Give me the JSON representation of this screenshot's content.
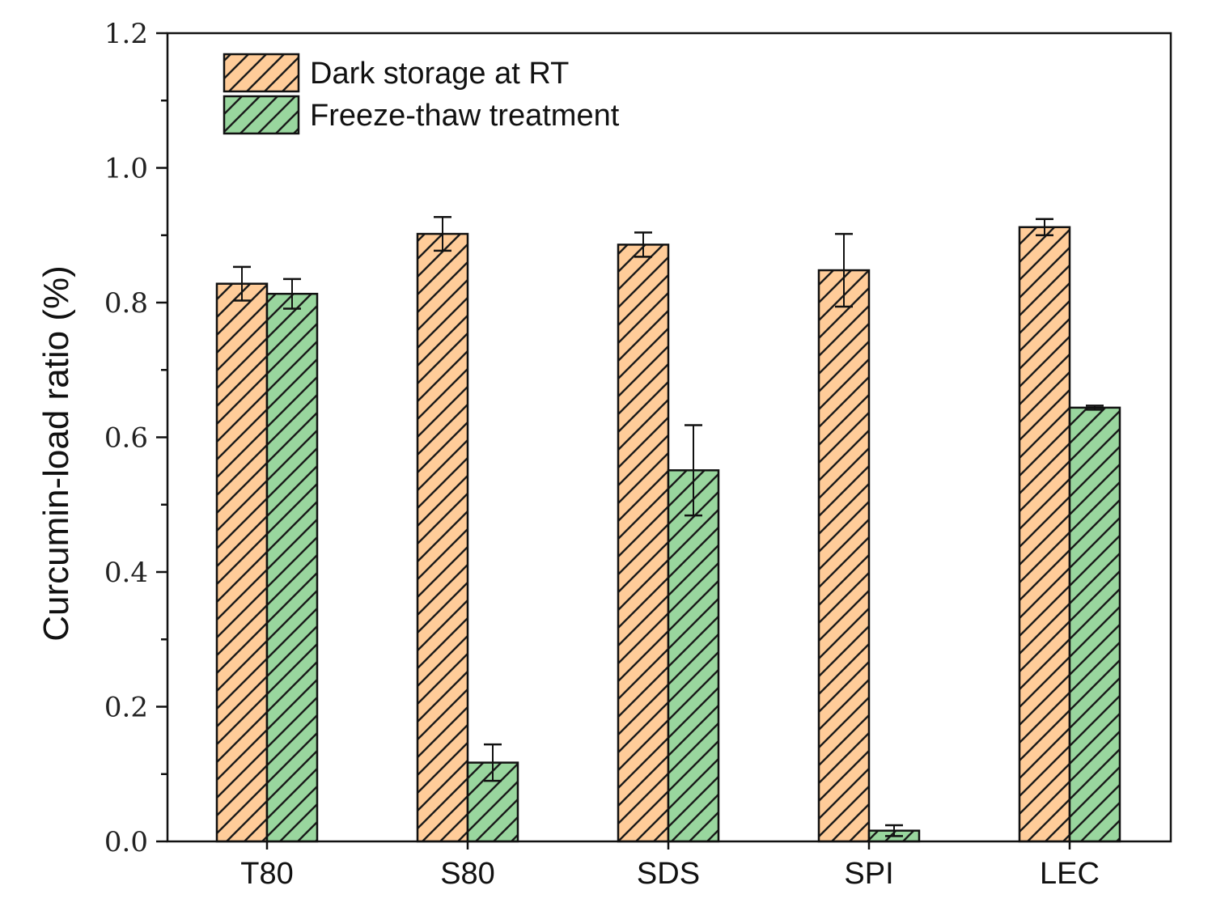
{
  "chart_data": {
    "type": "bar",
    "title": "",
    "xlabel": "",
    "ylabel": "Curcumin-load ratio (%)",
    "ylim": [
      0.0,
      1.2
    ],
    "yticks": [
      "0.0",
      "0.2",
      "0.4",
      "0.6",
      "0.8",
      "1.0",
      "1.2"
    ],
    "yticks_minor_step": 0.1,
    "categories": [
      "T80",
      "S80",
      "SDS",
      "SPI",
      "LEC"
    ],
    "grid": false,
    "legend_position": "top-left",
    "series": [
      {
        "name": "Dark storage at RT",
        "color": "#FFCC99",
        "hatch": "diagonal",
        "values": [
          0.828,
          0.902,
          0.886,
          0.848,
          0.912
        ],
        "errors": [
          0.025,
          0.025,
          0.018,
          0.054,
          0.012
        ]
      },
      {
        "name": "Freeze-thaw treatment",
        "color": "#99D69E",
        "hatch": "diagonal",
        "values": [
          0.813,
          0.117,
          0.551,
          0.016,
          0.644
        ],
        "errors": [
          0.022,
          0.027,
          0.067,
          0.008,
          0.003
        ]
      }
    ]
  }
}
